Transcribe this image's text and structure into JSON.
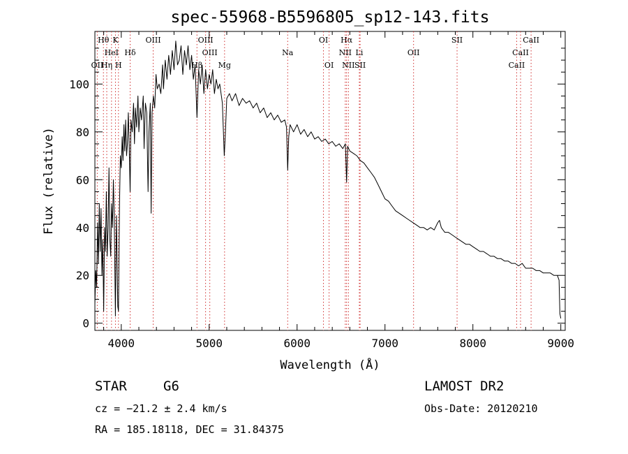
{
  "chart_data": {
    "type": "line",
    "title": "spec-55968-B5596805_sp12-143.fits",
    "xlabel": "Wavelength (Å)",
    "ylabel": "Flux (relative)",
    "xlim": [
      3700,
      9050
    ],
    "ylim": [
      -3,
      122
    ],
    "xticks": [
      4000,
      5000,
      6000,
      7000,
      8000,
      9000
    ],
    "yticks": [
      0,
      20,
      40,
      60,
      80,
      100
    ],
    "series": [
      {
        "points": [
          [
            3700,
            8
          ],
          [
            3710,
            22
          ],
          [
            3720,
            15
          ],
          [
            3730,
            42
          ],
          [
            3740,
            25
          ],
          [
            3750,
            50
          ],
          [
            3760,
            30
          ],
          [
            3770,
            48
          ],
          [
            3780,
            20
          ],
          [
            3790,
            35
          ],
          [
            3800,
            5
          ],
          [
            3810,
            40
          ],
          [
            3820,
            30
          ],
          [
            3830,
            55
          ],
          [
            3840,
            28
          ],
          [
            3850,
            40
          ],
          [
            3860,
            65
          ],
          [
            3870,
            35
          ],
          [
            3880,
            28
          ],
          [
            3890,
            50
          ],
          [
            3900,
            40
          ],
          [
            3910,
            60
          ],
          [
            3920,
            45
          ],
          [
            3933,
            3
          ],
          [
            3945,
            45
          ],
          [
            3960,
            7
          ],
          [
            3968,
            5
          ],
          [
            3980,
            50
          ],
          [
            3990,
            70
          ],
          [
            4000,
            65
          ],
          [
            4010,
            78
          ],
          [
            4020,
            68
          ],
          [
            4030,
            83
          ],
          [
            4040,
            72
          ],
          [
            4050,
            85
          ],
          [
            4060,
            70
          ],
          [
            4070,
            75
          ],
          [
            4080,
            88
          ],
          [
            4090,
            75
          ],
          [
            4101,
            55
          ],
          [
            4110,
            85
          ],
          [
            4125,
            80
          ],
          [
            4140,
            92
          ],
          [
            4150,
            75
          ],
          [
            4160,
            90
          ],
          [
            4175,
            82
          ],
          [
            4190,
            95
          ],
          [
            4200,
            80
          ],
          [
            4215,
            90
          ],
          [
            4230,
            85
          ],
          [
            4250,
            95
          ],
          [
            4260,
            73
          ],
          [
            4275,
            92
          ],
          [
            4290,
            88
          ],
          [
            4305,
            55
          ],
          [
            4315,
            80
          ],
          [
            4330,
            92
          ],
          [
            4340,
            46
          ],
          [
            4350,
            88
          ],
          [
            4365,
            95
          ],
          [
            4380,
            90
          ],
          [
            4395,
            104
          ],
          [
            4410,
            98
          ],
          [
            4430,
            100
          ],
          [
            4450,
            96
          ],
          [
            4470,
            108
          ],
          [
            4480,
            98
          ],
          [
            4500,
            110
          ],
          [
            4520,
            102
          ],
          [
            4540,
            112
          ],
          [
            4560,
            104
          ],
          [
            4580,
            114
          ],
          [
            4600,
            106
          ],
          [
            4620,
            118
          ],
          [
            4640,
            108
          ],
          [
            4660,
            110
          ],
          [
            4680,
            116
          ],
          [
            4700,
            104
          ],
          [
            4720,
            114
          ],
          [
            4740,
            108
          ],
          [
            4760,
            116
          ],
          [
            4780,
            106
          ],
          [
            4800,
            112
          ],
          [
            4820,
            102
          ],
          [
            4840,
            108
          ],
          [
            4861,
            86
          ],
          [
            4880,
            106
          ],
          [
            4900,
            100
          ],
          [
            4920,
            108
          ],
          [
            4940,
            96
          ],
          [
            4960,
            106
          ],
          [
            4980,
            98
          ],
          [
            5000,
            104
          ],
          [
            5020,
            100
          ],
          [
            5040,
            106
          ],
          [
            5060,
            96
          ],
          [
            5080,
            102
          ],
          [
            5100,
            98
          ],
          [
            5120,
            100
          ],
          [
            5150,
            92
          ],
          [
            5172,
            70
          ],
          [
            5183,
            78
          ],
          [
            5200,
            94
          ],
          [
            5230,
            96
          ],
          [
            5260,
            93
          ],
          [
            5300,
            96
          ],
          [
            5340,
            91
          ],
          [
            5380,
            94
          ],
          [
            5420,
            92
          ],
          [
            5460,
            93
          ],
          [
            5500,
            90
          ],
          [
            5540,
            92
          ],
          [
            5580,
            88
          ],
          [
            5620,
            90
          ],
          [
            5660,
            86
          ],
          [
            5700,
            88
          ],
          [
            5740,
            85
          ],
          [
            5780,
            87
          ],
          [
            5820,
            84
          ],
          [
            5860,
            85
          ],
          [
            5880,
            82
          ],
          [
            5893,
            64
          ],
          [
            5905,
            78
          ],
          [
            5920,
            83
          ],
          [
            5960,
            80
          ],
          [
            6000,
            83
          ],
          [
            6040,
            79
          ],
          [
            6080,
            81
          ],
          [
            6120,
            78
          ],
          [
            6160,
            80
          ],
          [
            6200,
            77
          ],
          [
            6240,
            78
          ],
          [
            6280,
            76
          ],
          [
            6320,
            77
          ],
          [
            6360,
            75
          ],
          [
            6400,
            76
          ],
          [
            6440,
            74
          ],
          [
            6480,
            75
          ],
          [
            6520,
            73
          ],
          [
            6550,
            75
          ],
          [
            6563,
            59
          ],
          [
            6575,
            74
          ],
          [
            6600,
            72
          ],
          [
            6640,
            71
          ],
          [
            6680,
            70
          ],
          [
            6720,
            68
          ],
          [
            6760,
            67
          ],
          [
            6800,
            65
          ],
          [
            6840,
            63
          ],
          [
            6880,
            61
          ],
          [
            6920,
            58
          ],
          [
            6960,
            55
          ],
          [
            7000,
            52
          ],
          [
            7040,
            51
          ],
          [
            7080,
            49
          ],
          [
            7120,
            47
          ],
          [
            7160,
            46
          ],
          [
            7200,
            45
          ],
          [
            7240,
            44
          ],
          [
            7280,
            43
          ],
          [
            7320,
            42
          ],
          [
            7360,
            41
          ],
          [
            7400,
            40
          ],
          [
            7440,
            40
          ],
          [
            7480,
            39
          ],
          [
            7520,
            40
          ],
          [
            7560,
            39
          ],
          [
            7600,
            42
          ],
          [
            7620,
            43
          ],
          [
            7640,
            40
          ],
          [
            7680,
            38
          ],
          [
            7720,
            38
          ],
          [
            7760,
            37
          ],
          [
            7800,
            36
          ],
          [
            7840,
            35
          ],
          [
            7880,
            34
          ],
          [
            7920,
            33
          ],
          [
            7960,
            33
          ],
          [
            8000,
            32
          ],
          [
            8040,
            31
          ],
          [
            8080,
            30
          ],
          [
            8120,
            30
          ],
          [
            8160,
            29
          ],
          [
            8200,
            28
          ],
          [
            8240,
            28
          ],
          [
            8280,
            27
          ],
          [
            8320,
            27
          ],
          [
            8360,
            26
          ],
          [
            8400,
            26
          ],
          [
            8440,
            25
          ],
          [
            8480,
            25
          ],
          [
            8520,
            24
          ],
          [
            8560,
            25
          ],
          [
            8600,
            23
          ],
          [
            8640,
            23
          ],
          [
            8680,
            23
          ],
          [
            8720,
            22
          ],
          [
            8760,
            22
          ],
          [
            8800,
            21
          ],
          [
            8840,
            21
          ],
          [
            8880,
            21
          ],
          [
            8920,
            20
          ],
          [
            8960,
            20
          ],
          [
            8980,
            18
          ],
          [
            8990,
            4
          ],
          [
            9000,
            2
          ]
        ]
      }
    ],
    "lines": [
      {
        "label": "Hθ",
        "x": 3797,
        "row": 0
      },
      {
        "label": "K",
        "x": 3934,
        "row": 0
      },
      {
        "label": "OIII",
        "x": 4363,
        "row": 0
      },
      {
        "label": "OIII",
        "x": 4959,
        "row": 0
      },
      {
        "label": "OI",
        "x": 6300,
        "row": 0
      },
      {
        "label": "Hα",
        "x": 6563,
        "row": 0
      },
      {
        "label": "SII",
        "x": 7820,
        "row": 0
      },
      {
        "label": "CaII",
        "x": 8662,
        "row": 0
      },
      {
        "label": "HeI",
        "x": 3889,
        "row": 1
      },
      {
        "label": "Hδ",
        "x": 4101,
        "row": 1
      },
      {
        "label": "OIII",
        "x": 5007,
        "row": 1
      },
      {
        "label": "Na",
        "x": 5893,
        "row": 1
      },
      {
        "label": "NII",
        "x": 6548,
        "row": 1
      },
      {
        "label": "Li",
        "x": 6708,
        "row": 1
      },
      {
        "label": "OII",
        "x": 7325,
        "row": 1
      },
      {
        "label": "CaII",
        "x": 8542,
        "row": 1
      },
      {
        "label": "OII",
        "x": 3727,
        "row": 2
      },
      {
        "label": "Hη",
        "x": 3835,
        "row": 2
      },
      {
        "label": "H",
        "x": 3968,
        "row": 2
      },
      {
        "label": "Hβ",
        "x": 4861,
        "row": 2
      },
      {
        "label": "Mg",
        "x": 5175,
        "row": 2
      },
      {
        "label": "OI",
        "x": 6364,
        "row": 2
      },
      {
        "label": "NII",
        "x": 6584,
        "row": 2
      },
      {
        "label": "SII",
        "x": 6717,
        "row": 2
      },
      {
        "label": "CaII",
        "x": 8498,
        "row": 2
      }
    ],
    "annotations": {
      "class": "STAR",
      "subclass": "G6",
      "survey": "LAMOST DR2",
      "cz": "cz = −21.2 ± 2.4 km/s",
      "obs_date": "Obs-Date: 20120210",
      "coords": "RA = 185.18118, DEC =  31.84375"
    }
  }
}
